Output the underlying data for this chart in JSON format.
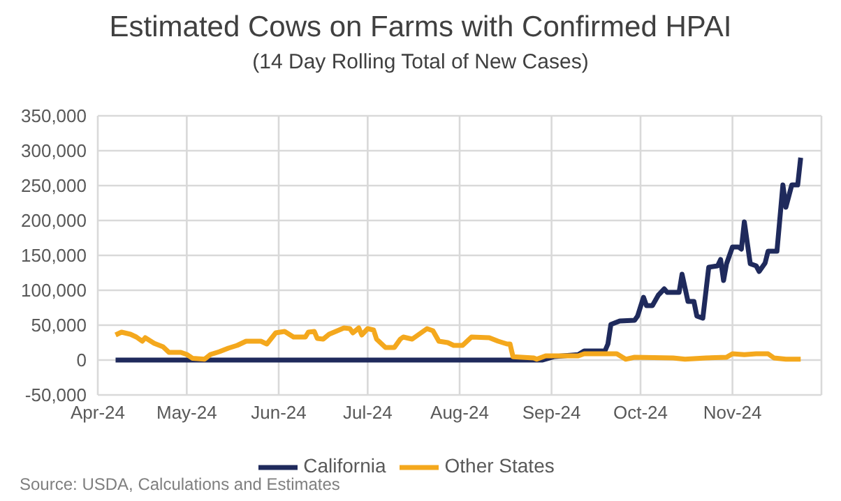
{
  "chart_data": {
    "type": "line",
    "title": "Estimated Cows on Farms with Confirmed HPAI",
    "subtitle": "(14 Day Rolling Total of New Cases)",
    "annotations": [
      "Source: USDA, Calculations and Estimates"
    ],
    "xlim": [
      "2024-04-01",
      "2024-12-01"
    ],
    "xticks": [
      {
        "value": "2024-04-01",
        "label": "Apr-24"
      },
      {
        "value": "2024-05-01",
        "label": "May-24"
      },
      {
        "value": "2024-06-01",
        "label": "Jun-24"
      },
      {
        "value": "2024-07-01",
        "label": "Jul-24"
      },
      {
        "value": "2024-08-01",
        "label": "Aug-24"
      },
      {
        "value": "2024-09-01",
        "label": "Sep-24"
      },
      {
        "value": "2024-10-01",
        "label": "Oct-24"
      },
      {
        "value": "2024-11-01",
        "label": "Nov-24"
      },
      {
        "value": "2024-12-01",
        "label": null
      }
    ],
    "ylim": [
      -50000,
      350000
    ],
    "yticks": [
      {
        "value": -50000,
        "label": "-50,000"
      },
      {
        "value": 0,
        "label": "0"
      },
      {
        "value": 50000,
        "label": "50,000"
      },
      {
        "value": 100000,
        "label": "100,000"
      },
      {
        "value": 150000,
        "label": "150,000"
      },
      {
        "value": 200000,
        "label": "200,000"
      },
      {
        "value": 250000,
        "label": "250,000"
      },
      {
        "value": 300000,
        "label": "300,000"
      },
      {
        "value": 350000,
        "label": "350,000"
      }
    ],
    "grid": true,
    "legend": "bottom",
    "marker": "none",
    "line_style": "solid",
    "series": [
      {
        "name": "California",
        "color": "#1f2a5c",
        "x": [
          "2024-04-07",
          "2024-08-29",
          "2024-09-02",
          "2024-09-10",
          "2024-09-12",
          "2024-09-19",
          "2024-09-20",
          "2024-09-21",
          "2024-09-24",
          "2024-09-29",
          "2024-09-30",
          "2024-10-02",
          "2024-10-03",
          "2024-10-05",
          "2024-10-07",
          "2024-10-09",
          "2024-10-10",
          "2024-10-14",
          "2024-10-15",
          "2024-10-17",
          "2024-10-19",
          "2024-10-20",
          "2024-10-22",
          "2024-10-24",
          "2024-10-27",
          "2024-10-28",
          "2024-10-29",
          "2024-10-30",
          "2024-11-01",
          "2024-11-03",
          "2024-11-04",
          "2024-11-05",
          "2024-11-07",
          "2024-11-09",
          "2024-11-10",
          "2024-11-12",
          "2024-11-13",
          "2024-11-16",
          "2024-11-18",
          "2024-11-19",
          "2024-11-21",
          "2024-11-23",
          "2024-11-24"
        ],
        "values": [
          0,
          0,
          5000,
          7800,
          13000,
          13000,
          23000,
          51000,
          56000,
          57000,
          63000,
          90000,
          78000,
          78000,
          93000,
          102000,
          97000,
          97000,
          123000,
          84000,
          84000,
          63000,
          60000,
          133000,
          135000,
          144000,
          114000,
          138000,
          162000,
          162000,
          159000,
          198000,
          138000,
          135000,
          127000,
          139000,
          156000,
          156000,
          251000,
          219000,
          251000,
          251000,
          290000
        ]
      },
      {
        "name": "Other States",
        "color": "#f4a81d",
        "x": [
          "2024-04-07",
          "2024-04-09",
          "2024-04-12",
          "2024-04-14",
          "2024-04-16",
          "2024-04-17",
          "2024-04-20",
          "2024-04-23",
          "2024-04-25",
          "2024-04-29",
          "2024-05-01",
          "2024-05-03",
          "2024-05-07",
          "2024-05-09",
          "2024-05-12",
          "2024-05-15",
          "2024-05-18",
          "2024-05-21",
          "2024-05-26",
          "2024-05-28",
          "2024-05-31",
          "2024-06-03",
          "2024-06-06",
          "2024-06-10",
          "2024-06-11",
          "2024-06-13",
          "2024-06-14",
          "2024-06-16",
          "2024-06-18",
          "2024-06-23",
          "2024-06-25",
          "2024-06-26",
          "2024-06-28",
          "2024-06-29",
          "2024-07-01",
          "2024-07-03",
          "2024-07-04",
          "2024-07-07",
          "2024-07-10",
          "2024-07-12",
          "2024-07-13",
          "2024-07-16",
          "2024-07-19",
          "2024-07-21",
          "2024-07-23",
          "2024-07-25",
          "2024-07-28",
          "2024-07-30",
          "2024-08-02",
          "2024-08-05",
          "2024-08-11",
          "2024-08-14",
          "2024-08-17",
          "2024-08-18",
          "2024-08-19",
          "2024-08-26",
          "2024-08-27",
          "2024-08-30",
          "2024-09-10",
          "2024-09-12",
          "2024-09-23",
          "2024-09-26",
          "2024-09-29",
          "2024-10-12",
          "2024-10-16",
          "2024-10-23",
          "2024-10-30",
          "2024-11-01",
          "2024-11-05",
          "2024-11-09",
          "2024-11-13",
          "2024-11-15",
          "2024-11-19",
          "2024-11-24"
        ],
        "values": [
          36000,
          40000,
          37000,
          33000,
          27000,
          32000,
          24000,
          19000,
          11000,
          11000,
          8000,
          2400,
          1200,
          8000,
          12000,
          17000,
          21000,
          27000,
          27000,
          23000,
          39000,
          41000,
          33000,
          33000,
          40000,
          41000,
          31000,
          30000,
          37000,
          46000,
          45000,
          39000,
          46000,
          36000,
          45000,
          43000,
          30000,
          18000,
          18000,
          30000,
          33000,
          30000,
          39000,
          45000,
          42000,
          27000,
          25000,
          21000,
          21000,
          33000,
          32000,
          27000,
          23000,
          23000,
          4800,
          3000,
          1200,
          6000,
          6000,
          9000,
          9000,
          1200,
          4000,
          3000,
          1200,
          3000,
          4000,
          9000,
          7800,
          9000,
          9000,
          3000,
          1200,
          1200
        ]
      }
    ]
  }
}
